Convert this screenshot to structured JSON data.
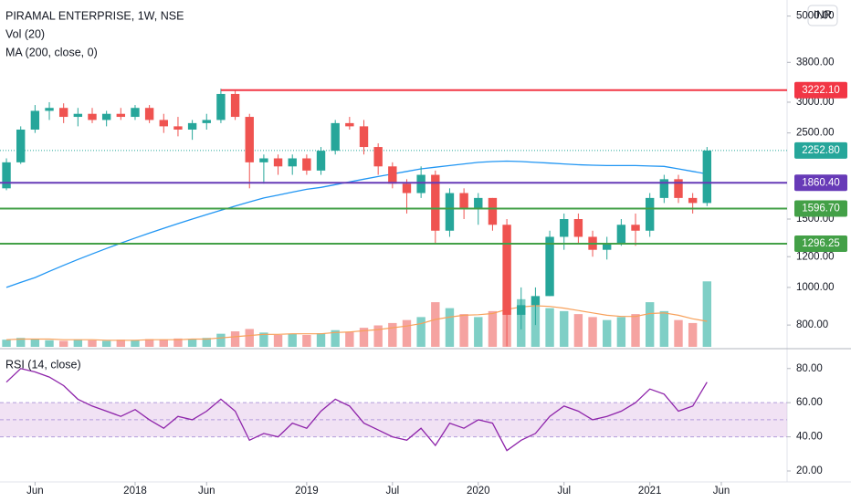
{
  "chart_data": [
    {
      "type": "candlestick",
      "title": "PIRAMAL ENTERPRISE, 1W, NSE",
      "currency": "INR",
      "open": [
        1800,
        2100,
        2550,
        2850,
        2900,
        2750,
        2800,
        2700,
        2800,
        2750,
        2900,
        2700,
        2600,
        2550,
        2650,
        2700,
        3150,
        2750,
        2100,
        2150,
        2050,
        2150,
        2000,
        2250,
        2650,
        2600,
        2300,
        2050,
        1850,
        1750,
        1950,
        1400,
        1750,
        1600,
        1700,
        1450,
        850,
        900,
        950,
        1350,
        1500,
        1350,
        1250,
        1300,
        1450,
        1400,
        1700,
        1900,
        1700,
        1650
      ],
      "high": [
        2150,
        2600,
        2950,
        3000,
        2980,
        2900,
        2900,
        2850,
        2900,
        2950,
        2950,
        2800,
        2750,
        2700,
        2800,
        3250,
        3222.1,
        2800,
        2200,
        2200,
        2200,
        2200,
        2300,
        2700,
        2750,
        2700,
        2350,
        2100,
        1900,
        2050,
        2000,
        1800,
        1800,
        1750,
        1700,
        1500,
        1000,
        1000,
        1400,
        1550,
        1550,
        1400,
        1350,
        1500,
        1550,
        1750,
        1950,
        1950,
        1750,
        2300
      ],
      "low": [
        1780,
        2080,
        2500,
        2700,
        2650,
        2600,
        2650,
        2600,
        2700,
        2700,
        2650,
        2500,
        2450,
        2400,
        2550,
        2650,
        2700,
        1800,
        1850,
        1950,
        1950,
        1950,
        1950,
        2200,
        2550,
        2200,
        1950,
        1800,
        1550,
        1700,
        1300,
        1350,
        1500,
        1450,
        1400,
        705,
        780,
        800,
        950,
        1250,
        1300,
        1200,
        1180,
        1280,
        1280,
        1350,
        1650,
        1650,
        1550,
        1620
      ],
      "close": [
        2100,
        2550,
        2850,
        2900,
        2750,
        2800,
        2700,
        2800,
        2750,
        2900,
        2700,
        2600,
        2550,
        2650,
        2700,
        3150,
        2750,
        2100,
        2150,
        2050,
        2150,
        2000,
        2250,
        2650,
        2600,
        2300,
        2050,
        1850,
        1750,
        1950,
        1400,
        1750,
        1600,
        1700,
        1450,
        850,
        900,
        950,
        1350,
        1500,
        1350,
        1250,
        1300,
        1450,
        1400,
        1700,
        1900,
        1700,
        1650,
        2252.8
      ],
      "up_color": "#26a69a",
      "down_color": "#ef5350",
      "volume": {
        "name": "Vol (20)",
        "values": [
          1.2,
          1.5,
          1.3,
          1.1,
          1.0,
          1.2,
          1.1,
          1.0,
          1.2,
          1.1,
          1.3,
          1.2,
          1.4,
          1.3,
          1.5,
          2.2,
          2.6,
          3.0,
          2.4,
          2.0,
          2.2,
          2.0,
          2.3,
          2.8,
          2.5,
          3.2,
          3.6,
          4.0,
          4.5,
          5.0,
          7.5,
          6.5,
          5.5,
          5.0,
          6.0,
          9.5,
          8.0,
          7.0,
          6.5,
          6.0,
          5.5,
          5.0,
          4.5,
          5.0,
          5.5,
          7.5,
          6.0,
          4.5,
          4.0,
          11.0
        ],
        "ma": [
          1.2,
          1.3,
          1.3,
          1.3,
          1.2,
          1.2,
          1.2,
          1.1,
          1.1,
          1.1,
          1.2,
          1.2,
          1.2,
          1.3,
          1.3,
          1.5,
          1.7,
          1.9,
          2.1,
          2.1,
          2.2,
          2.2,
          2.2,
          2.4,
          2.5,
          2.7,
          2.9,
          3.2,
          3.5,
          3.9,
          4.6,
          5.0,
          5.3,
          5.4,
          5.6,
          6.3,
          6.7,
          6.9,
          6.8,
          6.5,
          6.1,
          5.7,
          5.3,
          5.1,
          5.1,
          5.6,
          5.7,
          5.3,
          4.7,
          4.3
        ],
        "up_color": "#7fcfc6",
        "down_color": "#f5a3a1",
        "ma_color": "#f7a05a"
      },
      "vlim": [
        0,
        11.5
      ],
      "ma": {
        "name": "MA (200, close, 0)",
        "color": "#2196f3",
        "values": [
          1000,
          1030,
          1060,
          1100,
          1140,
          1180,
          1220,
          1260,
          1300,
          1340,
          1380,
          1420,
          1460,
          1500,
          1540,
          1580,
          1620,
          1660,
          1700,
          1730,
          1760,
          1790,
          1810,
          1840,
          1870,
          1900,
          1930,
          1960,
          1990,
          2020,
          2040,
          2060,
          2080,
          2100,
          2110,
          2115,
          2110,
          2100,
          2090,
          2080,
          2070,
          2065,
          2060,
          2060,
          2060,
          2055,
          2050,
          2020,
          1990,
          1960
        ]
      },
      "ylim": [
        703,
        5500
      ],
      "log_scale": true,
      "yticks": [
        {
          "value": 800,
          "label": "800.00"
        },
        {
          "value": 1000,
          "label": "1000.00"
        },
        {
          "value": 1200,
          "label": "1200.00"
        },
        {
          "value": 1500,
          "label": "1500.00"
        },
        {
          "value": 2500,
          "label": "2500.00"
        },
        {
          "value": 3000,
          "label": "3000.00"
        },
        {
          "value": 3800,
          "label": "3800.00"
        },
        {
          "value": 5000,
          "label": "5000.00"
        }
      ],
      "xlim": [
        -0.45,
        54.6
      ],
      "xticks": [
        {
          "value": 2,
          "label": "Jun"
        },
        {
          "value": 9,
          "label": "2018"
        },
        {
          "value": 14,
          "label": "Jun"
        },
        {
          "value": 21,
          "label": "2019"
        },
        {
          "value": 27,
          "label": "Jul"
        },
        {
          "value": 33,
          "label": "2020"
        },
        {
          "value": 39,
          "label": "Jul"
        },
        {
          "value": 45,
          "label": "2021"
        },
        {
          "value": 50,
          "label": "Jun"
        }
      ],
      "levels": [
        {
          "value": 3222.1,
          "label": "3222.10",
          "color": "#f23645"
        },
        {
          "value": 1860.4,
          "label": "1860.40",
          "color": "#673ab7"
        },
        {
          "value": 1596.7,
          "label": "1596.70",
          "color": "#43a047"
        },
        {
          "value": 1296.25,
          "label": "1296.25",
          "color": "#43a047"
        }
      ],
      "last": {
        "value": 2252.8,
        "label": "2252.80",
        "color": "#26a69a"
      }
    },
    {
      "type": "line",
      "title": "RSI (14, close)",
      "color": "#8e24aa",
      "band": [
        40,
        60
      ],
      "midline": 50,
      "band_color": "#e1bee7",
      "values": [
        72,
        80,
        78,
        75,
        70,
        62,
        58,
        55,
        52,
        56,
        50,
        45,
        52,
        50,
        55,
        62,
        55,
        38,
        42,
        40,
        48,
        45,
        55,
        62,
        58,
        48,
        44,
        40,
        38,
        45,
        35,
        48,
        45,
        50,
        48,
        32,
        38,
        42,
        52,
        58,
        55,
        50,
        52,
        55,
        60,
        68,
        65,
        55,
        58,
        72
      ],
      "ylim": [
        16.8,
        89.5
      ],
      "yticks": [
        {
          "value": 20,
          "label": "20.00"
        },
        {
          "value": 40,
          "label": "40.00"
        },
        {
          "value": 60,
          "label": "60.00"
        },
        {
          "value": 80,
          "label": "80.00"
        }
      ]
    }
  ]
}
